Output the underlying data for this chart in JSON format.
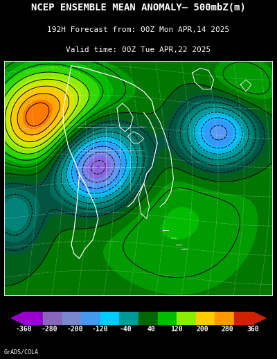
{
  "title_line1": "NCEP ENSEMBLE MEAN ANOMALY– 500mbZ(m)",
  "title_line2": "192H Forecast from: 00Z Mon APR,14 2025",
  "title_line3": "Valid time: 00Z Tue APR,22 2025",
  "colorbar_labels": [
    "-360",
    "-280",
    "-200",
    "-120",
    "-40",
    "40",
    "120",
    "200",
    "280",
    "360"
  ],
  "colorbar_values": [
    -360,
    -280,
    -200,
    -120,
    -40,
    40,
    120,
    200,
    280,
    360
  ],
  "colorbar_colors_neg": [
    "#9B00C8",
    "#8B44CC",
    "#7B68CC",
    "#4488DD",
    "#00BBDD",
    "#008899"
  ],
  "colorbar_colors_pos": [
    "#007700",
    "#00BB00",
    "#AAEE00",
    "#FFDD00",
    "#FF9900",
    "#FF3300"
  ],
  "background_color": "#000000",
  "text_color": "#FFFFFF",
  "grads_label": "GrADS/COLA",
  "ocean_color": "#007070",
  "title_fontsize": 10,
  "sub_fontsize": 8
}
